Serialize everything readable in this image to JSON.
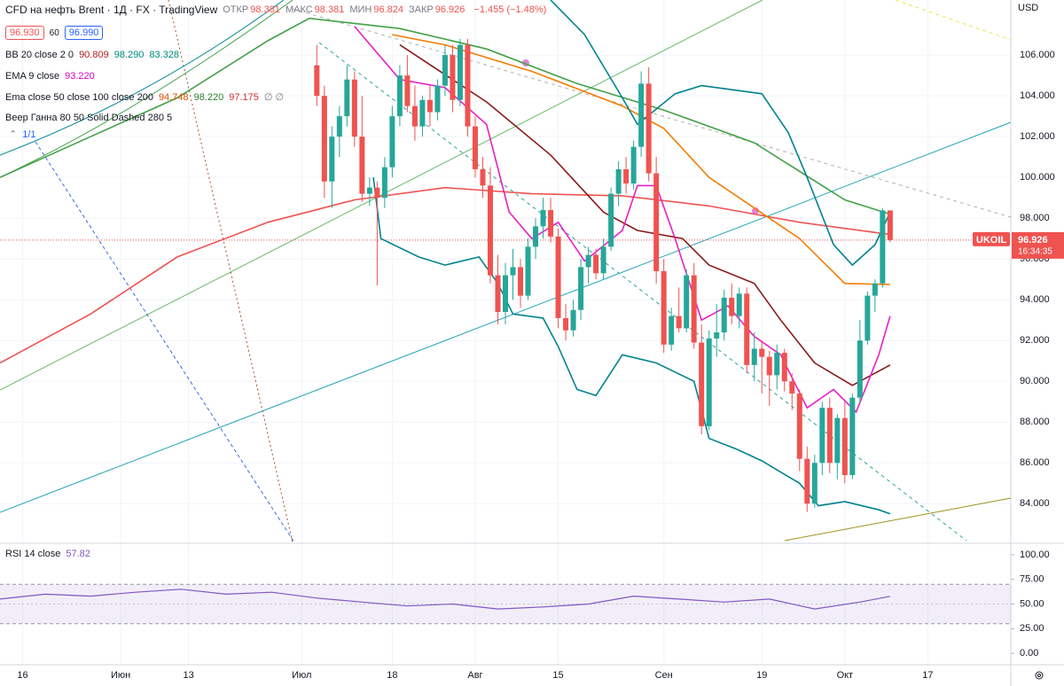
{
  "header": {
    "symbol": "CFD на нефть Brent · 1Д · FX · TradingView",
    "ohlc": [
      {
        "label": "ОТКР",
        "value": "98.381"
      },
      {
        "label": "МАКС",
        "value": "98.381"
      },
      {
        "label": "МИН",
        "value": "96.824"
      },
      {
        "label": "ЗАКР",
        "value": "96.926"
      }
    ],
    "change": "−1.455 (−1.48%)",
    "buttons": [
      "96.930",
      "60",
      "96.990"
    ]
  },
  "indicators": [
    {
      "name": "BB 20 close 2 0",
      "values": [
        {
          "text": "90.809",
          "color": "#b71c1c"
        },
        {
          "text": "98.290",
          "color": "#00897b"
        },
        {
          "text": "83.328",
          "color": "#00897b"
        }
      ]
    },
    {
      "name": "EMA 9 close",
      "values": [
        {
          "text": "93.220",
          "color": "#d500c8"
        }
      ]
    },
    {
      "name": "Ema close 50 close 100 close 200",
      "values": [
        {
          "text": "94.748",
          "color": "#e65100"
        },
        {
          "text": "98.220",
          "color": "#2e7d32"
        },
        {
          "text": "97.175",
          "color": "#d32f2f"
        },
        {
          "text": "∅ ∅",
          "color": "#787b86"
        }
      ]
    },
    {
      "name": "Веер Ганна 80 50 Solid Dashed 280 5",
      "values": []
    }
  ],
  "drawing_toolbar": "1/1",
  "chart_data": [
    {
      "type": "candlestick",
      "currency": "USD",
      "price_tag": {
        "symbol": "UKOIL",
        "price": "96.926",
        "countdown": "16:34:35"
      },
      "last_price": 96.926,
      "up_color": "#26a69a",
      "down_color": "#ef5350",
      "grid": true,
      "ylim": [
        82.1,
        108.7
      ],
      "yticks": [
        {
          "value": 84,
          "label": "84.000"
        },
        {
          "value": 86,
          "label": "86.000"
        },
        {
          "value": 88,
          "label": "88.000"
        },
        {
          "value": 90,
          "label": "90.000"
        },
        {
          "value": 92,
          "label": "92.000"
        },
        {
          "value": 94,
          "label": "94.000"
        },
        {
          "value": 96,
          "label": "96.000"
        },
        {
          "value": 98,
          "label": "98.000"
        },
        {
          "value": 100,
          "label": "100.000"
        },
        {
          "value": 102,
          "label": "102.000"
        },
        {
          "value": 104,
          "label": "104.000"
        },
        {
          "value": 106,
          "label": "106.000"
        }
      ],
      "xlim": [
        -40,
        94
      ],
      "xticks": [
        {
          "value": -37,
          "label": "16"
        },
        {
          "value": -24,
          "label": "Июн"
        },
        {
          "value": -15,
          "label": "13"
        },
        {
          "value": 0,
          "label": "Июл"
        },
        {
          "value": 12,
          "label": "18"
        },
        {
          "value": 23,
          "label": "Авг"
        },
        {
          "value": 34,
          "label": "15"
        },
        {
          "value": 48,
          "label": "Сен"
        },
        {
          "value": 61,
          "label": "19"
        },
        {
          "value": 72,
          "label": "Окт"
        },
        {
          "value": 83,
          "label": "17"
        }
      ],
      "candles": {
        "x": [
          2,
          3,
          4,
          5,
          6,
          7,
          8,
          9,
          10,
          11,
          12,
          13,
          14,
          15,
          16,
          17,
          18,
          19,
          20,
          21,
          22,
          23,
          24,
          25,
          26,
          27,
          28,
          29,
          30,
          31,
          32,
          33,
          34,
          35,
          36,
          37,
          38,
          39,
          40,
          41,
          42,
          43,
          44,
          45,
          46,
          47,
          48,
          49,
          50,
          51,
          52,
          53,
          54,
          55,
          56,
          57,
          58,
          59,
          60,
          61,
          62,
          63,
          64,
          65,
          66,
          67,
          68,
          69,
          70,
          71,
          72,
          73,
          74,
          75,
          76,
          77,
          78
        ],
        "open": [
          105.5,
          104,
          99.8,
          102,
          103,
          104.8,
          102,
          99.2,
          99.5,
          99,
          100.5,
          103,
          105,
          103.5,
          102.5,
          103.8,
          103.2,
          104.5,
          106,
          103.8,
          106.5,
          102.5,
          100.4,
          99.6,
          95.2,
          93.4,
          95.2,
          95.6,
          94.2,
          96.6,
          97.6,
          98.4,
          97.1,
          93.1,
          92.5,
          93.5,
          95.6,
          96.2,
          95.3,
          96.6,
          99.2,
          100.4,
          99.7,
          101.5,
          104.6,
          100.2,
          95.4,
          91.8,
          93.2,
          92.6,
          95.2,
          91.9,
          87.8,
          92.1,
          92.4,
          94.1,
          93.2,
          94.3,
          90.8,
          91.6,
          91.2,
          90.3,
          91.4,
          90,
          89.4,
          86.2,
          84,
          86,
          88.7,
          86,
          88.2,
          85.4,
          89.2,
          92,
          94.2,
          94.8,
          98.381
        ],
        "high": [
          106.5,
          104.5,
          102.5,
          103.5,
          105.5,
          105.2,
          104,
          100,
          99.8,
          101,
          103.5,
          105.5,
          106,
          104.5,
          104,
          104.5,
          104.8,
          106.5,
          106.5,
          106.8,
          106.8,
          103,
          101,
          100.5,
          96.2,
          95.8,
          96.5,
          96,
          97,
          98,
          99,
          99,
          97.5,
          93.8,
          94,
          96,
          96.6,
          96.5,
          97,
          99.5,
          100.8,
          101,
          101.8,
          105.2,
          105.4,
          101,
          96,
          93.6,
          94.6,
          95.5,
          95.8,
          92.8,
          92.5,
          93.8,
          94.5,
          94.8,
          94.6,
          94.6,
          92.4,
          92,
          91.5,
          91.8,
          91.6,
          90.4,
          89.6,
          86.8,
          86.4,
          89,
          89.2,
          88.4,
          89,
          89.4,
          93,
          94.4,
          95,
          98.5,
          98.381
        ],
        "low": [
          103.5,
          99,
          98.5,
          101,
          102.5,
          101.5,
          98.8,
          98.6,
          94.7,
          98.5,
          100,
          102.5,
          103.2,
          101.8,
          102,
          102.5,
          102.8,
          104,
          103.2,
          103.5,
          102,
          100,
          99,
          94.8,
          92.8,
          92.8,
          94,
          93.6,
          94,
          96,
          97,
          96.8,
          92.6,
          92,
          92.2,
          93,
          94.8,
          95,
          95,
          96.4,
          98.6,
          99.2,
          99.4,
          101,
          99.8,
          94.8,
          91.4,
          91.5,
          92.4,
          92.4,
          91.6,
          87.4,
          87.6,
          91.2,
          92,
          92.8,
          92.6,
          90.4,
          90,
          89.4,
          88.8,
          89.6,
          89.5,
          88.6,
          85.6,
          83.6,
          83.8,
          85.4,
          85.5,
          85.2,
          85,
          85.2,
          88.9,
          91.8,
          93.4,
          94.6,
          96.824
        ],
        "close": [
          104,
          99.8,
          102,
          103,
          104.8,
          102,
          99.2,
          99.5,
          99,
          100.5,
          103,
          105,
          103.5,
          102.5,
          103.8,
          103.2,
          104.5,
          106,
          103.8,
          106.5,
          102.5,
          100.4,
          99.6,
          95.2,
          93.4,
          95.2,
          95.6,
          94.2,
          96.6,
          97.6,
          98.4,
          97.1,
          93.1,
          92.5,
          93.5,
          95.6,
          96.2,
          95.3,
          96.6,
          99.2,
          100.4,
          99.7,
          101.5,
          104.6,
          100.2,
          95.4,
          91.8,
          93.2,
          92.6,
          95.2,
          91.9,
          87.8,
          92.1,
          92.4,
          94.1,
          93.2,
          94.3,
          90.8,
          91.6,
          91.2,
          90.3,
          91.4,
          90,
          89.4,
          86.2,
          84,
          86,
          88.7,
          86,
          88.2,
          85.4,
          89.2,
          92,
          94.2,
          94.8,
          98.381,
          96.926
        ]
      },
      "overlays": [
        {
          "color": "#ef5350",
          "x": [
            -40,
            -28,
            -16.5,
            -4.5,
            7,
            19,
            30.5,
            42.5,
            54,
            66,
            78
          ],
          "values": [
            90.9,
            93.3,
            96.1,
            97.8,
            98.9,
            99.5,
            99.2,
            99.1,
            98.6,
            97.8,
            97.2
          ]
        },
        {
          "color": "#43a047",
          "x": [
            -40,
            -28,
            -16.5,
            -4.5,
            1,
            13,
            24.5,
            36.5,
            48,
            60,
            72,
            78
          ],
          "values": [
            100,
            102,
            103.9,
            106.7,
            107.8,
            107.3,
            106.3,
            104.6,
            103.3,
            101.7,
            98.9,
            98.2
          ]
        },
        {
          "color": "#f57c00",
          "x": [
            12,
            19,
            30.5,
            42.5,
            48,
            54,
            60,
            66,
            72,
            78
          ],
          "values": [
            107,
            106.5,
            105.2,
            103.5,
            102.4,
            100,
            98.5,
            97,
            94.8,
            94.75
          ]
        },
        {
          "color": "#8b1a1a",
          "x": [
            13,
            24.5,
            33,
            40,
            44.5,
            50.5,
            54,
            60,
            63.5,
            68,
            73,
            78
          ],
          "values": [
            106.5,
            103.7,
            101.1,
            98.3,
            97.4,
            97,
            95.7,
            94.8,
            93,
            90.9,
            89.8,
            90.8
          ]
        },
        {
          "color": "#e91ec8",
          "x": [
            7,
            13,
            19,
            24.5,
            27.5,
            30.5,
            34,
            37.5,
            42.5,
            44.5,
            47,
            49.5,
            53,
            56.5,
            60,
            63.5,
            67,
            70.5,
            73.5,
            76.5,
            78
          ],
          "values": [
            107.4,
            104.8,
            104.4,
            102.6,
            98.3,
            97,
            97.8,
            95.9,
            97.4,
            99.6,
            99.6,
            97,
            93,
            93.7,
            92.2,
            91.3,
            88.7,
            89.6,
            88.5,
            91.3,
            93.2
          ]
        },
        {
          "color": "#00838f",
          "x": [
            33,
            37.5,
            42.5,
            44.5,
            49.5,
            53,
            61,
            64.5,
            67,
            70.5,
            73,
            76,
            78
          ],
          "values": [
            108.7,
            107,
            103.9,
            102.6,
            104.1,
            104.5,
            104.1,
            102.2,
            100,
            96.7,
            95.7,
            96.7,
            98.3
          ]
        },
        {
          "color": "#00838f",
          "x": [
            9.5,
            10.5,
            15.5,
            19,
            23.5,
            26,
            28,
            32,
            34,
            36.5,
            39,
            42.5,
            47,
            52,
            54,
            57.5,
            61,
            66,
            68.5,
            72,
            76.5,
            78
          ],
          "values": [
            100,
            97,
            96.1,
            95.7,
            96.1,
            94.8,
            93.3,
            93.1,
            91.7,
            89.6,
            89.3,
            91.3,
            90.9,
            90,
            87.2,
            86.7,
            86.1,
            85,
            83.9,
            84.1,
            83.7,
            83.5
          ]
        }
      ]
    },
    {
      "type": "line",
      "title": "RSI 14 close",
      "value": "57.82",
      "color": "#7e57c2",
      "ylim": [
        -11.6,
        109.8
      ],
      "yticks": [
        {
          "value": 0,
          "label": "0.00"
        },
        {
          "value": 25,
          "label": "25.00"
        },
        {
          "value": 50,
          "label": "50.00"
        },
        {
          "value": 75,
          "label": "75.00"
        },
        {
          "value": 100,
          "label": "100.00"
        }
      ],
      "bands": [
        30,
        70
      ],
      "xlim": [
        -40,
        94
      ],
      "x": [
        -40,
        -34,
        -28,
        -22,
        -16,
        -10,
        -4,
        2,
        8,
        14,
        20,
        26,
        32,
        38,
        44,
        50,
        56,
        62,
        68,
        74,
        78
      ],
      "values": [
        55,
        60,
        58,
        62,
        65,
        60,
        62,
        56,
        52,
        48,
        50,
        45,
        47,
        50,
        58,
        55,
        52,
        55,
        45,
        52,
        57.82
      ]
    }
  ]
}
